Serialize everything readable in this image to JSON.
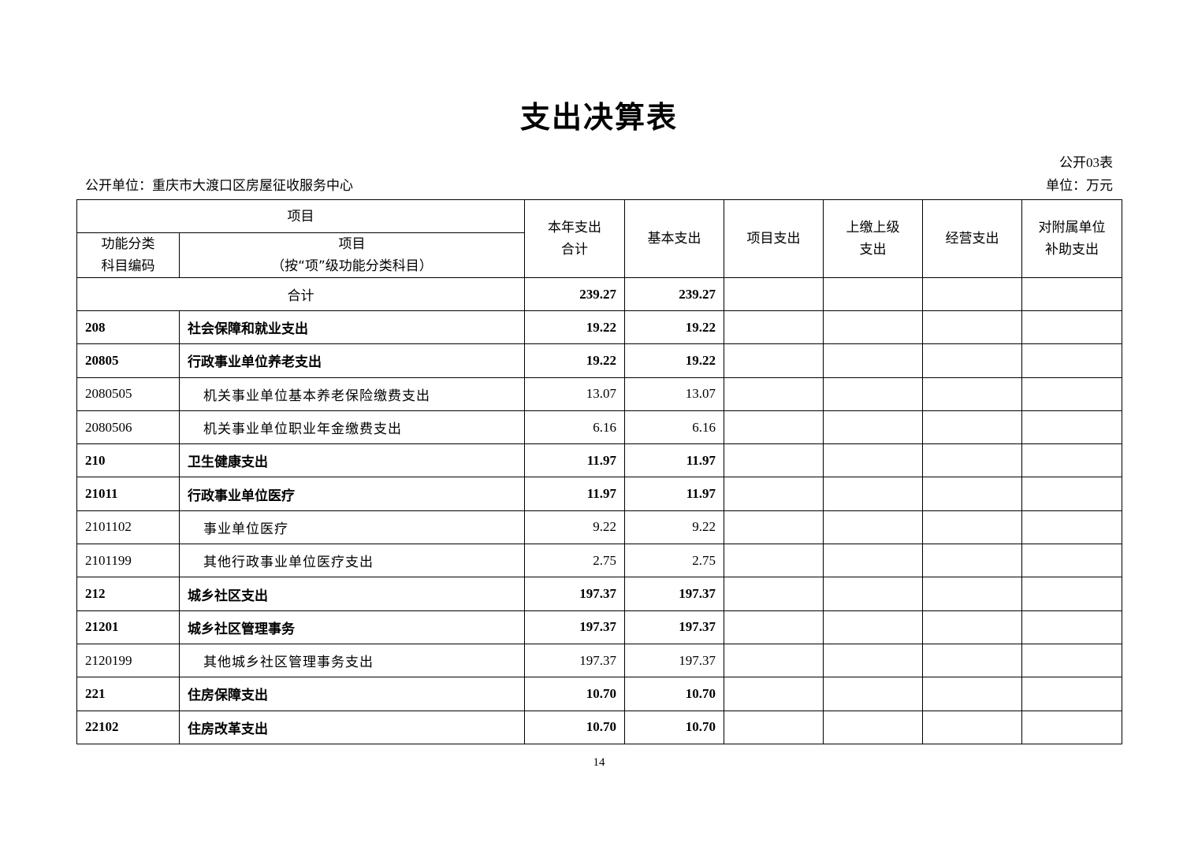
{
  "title": "支出决算表",
  "table_no": "公开03表",
  "unit_name": "公开单位：重庆市大渡口区房屋征收服务中心",
  "unit": "单位：万元",
  "headers": {
    "item": "项目",
    "code": "功能分类\n科目编码",
    "name": "项目\n（按“项”级功能分类科目）",
    "total": "本年支出\n合计",
    "basic": "基本支出",
    "project": "项目支出",
    "upper": "上缴上级\n支出",
    "business": "经营支出",
    "subsidy": "对附属单位\n补助支出"
  },
  "sum_row": {
    "label": "合计",
    "total": "239.27",
    "basic": "239.27"
  },
  "rows": [
    {
      "code": "208",
      "name": "社会保障和就业支出",
      "total": "19.22",
      "basic": "19.22",
      "level": 1
    },
    {
      "code": "20805",
      "name": "行政事业单位养老支出",
      "total": "19.22",
      "basic": "19.22",
      "level": 2
    },
    {
      "code": "2080505",
      "name": "机关事业单位基本养老保险缴费支出",
      "total": "13.07",
      "basic": "13.07",
      "level": 3
    },
    {
      "code": "2080506",
      "name": "机关事业单位职业年金缴费支出",
      "total": "6.16",
      "basic": "6.16",
      "level": 3
    },
    {
      "code": "210",
      "name": "卫生健康支出",
      "total": "11.97",
      "basic": "11.97",
      "level": 1
    },
    {
      "code": "21011",
      "name": "行政事业单位医疗",
      "total": "11.97",
      "basic": "11.97",
      "level": 2
    },
    {
      "code": "2101102",
      "name": "事业单位医疗",
      "total": "9.22",
      "basic": "9.22",
      "level": 3
    },
    {
      "code": "2101199",
      "name": "其他行政事业单位医疗支出",
      "total": "2.75",
      "basic": "2.75",
      "level": 3
    },
    {
      "code": "212",
      "name": "城乡社区支出",
      "total": "197.37",
      "basic": "197.37",
      "level": 1
    },
    {
      "code": "21201",
      "name": "城乡社区管理事务",
      "total": "197.37",
      "basic": "197.37",
      "level": 2
    },
    {
      "code": "2120199",
      "name": "其他城乡社区管理事务支出",
      "total": "197.37",
      "basic": "197.37",
      "level": 3
    },
    {
      "code": "221",
      "name": "住房保障支出",
      "total": "10.70",
      "basic": "10.70",
      "level": 1
    },
    {
      "code": "22102",
      "name": "住房改革支出",
      "total": "10.70",
      "basic": "10.70",
      "level": 2
    }
  ],
  "page_number": "14"
}
